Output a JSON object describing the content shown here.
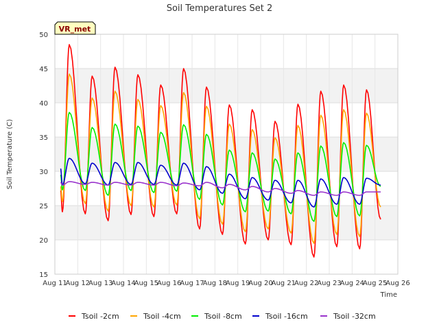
{
  "chart_data": {
    "type": "line",
    "title": "Soil Temperatures Set 2",
    "xlabel": "Time",
    "ylabel": "Soil Temperature (C)",
    "badge": "VR_met",
    "ylim": [
      15,
      50
    ],
    "yticks": [
      15,
      20,
      25,
      30,
      35,
      40,
      45,
      50
    ],
    "xlim": [
      11,
      26
    ],
    "xtick_labels": [
      "Aug 11",
      "Aug 12",
      "Aug 13",
      "Aug 14",
      "Aug 15",
      "Aug 16",
      "Aug 17",
      "Aug 18",
      "Aug 19",
      "Aug 20",
      "Aug 21",
      "Aug 22",
      "Aug 23",
      "Aug 24",
      "Aug 25",
      "Aug 26"
    ],
    "grid": true,
    "banded_background": true,
    "legend_position": "bottom",
    "days": [
      11,
      12,
      13,
      14,
      15,
      16,
      17,
      18,
      19,
      20,
      21,
      22,
      23,
      24,
      25
    ],
    "series": [
      {
        "name": "Tsoil -2cm",
        "color": "#ff0000",
        "start": 27.2,
        "end": 23.0,
        "mins": [
          24.1,
          23.8,
          22.8,
          23.7,
          23.4,
          23.8,
          21.6,
          20.8,
          19.4,
          20.0,
          19.3,
          17.5,
          19.0,
          18.7
        ],
        "maxs": [
          48.5,
          43.9,
          45.2,
          44.1,
          42.6,
          45.0,
          42.3,
          39.7,
          39.0,
          37.3,
          39.8,
          41.7,
          42.6,
          41.9
        ]
      },
      {
        "name": "Tsoil -4cm",
        "color": "#ffa500",
        "start": 27.8,
        "end": 24.8,
        "mins": [
          25.6,
          25.3,
          24.2,
          25.0,
          24.8,
          25.1,
          23.1,
          22.3,
          21.2,
          21.6,
          21.0,
          19.5,
          20.8,
          20.5
        ],
        "maxs": [
          44.2,
          40.7,
          41.7,
          40.5,
          39.6,
          41.5,
          39.5,
          36.9,
          36.1,
          34.9,
          36.7,
          38.2,
          39.0,
          38.5
        ]
      },
      {
        "name": "Tsoil -8cm",
        "color": "#00ee00",
        "start": 29.5,
        "end": 27.8,
        "mins": [
          27.3,
          27.2,
          26.5,
          27.2,
          26.9,
          27.1,
          25.9,
          25.1,
          24.1,
          24.2,
          23.8,
          22.7,
          23.4,
          23.5
        ],
        "maxs": [
          38.6,
          36.4,
          36.9,
          36.6,
          35.7,
          36.8,
          35.4,
          33.1,
          32.7,
          31.8,
          32.7,
          33.7,
          34.2,
          33.8
        ]
      },
      {
        "name": "Tsoil -16cm",
        "color": "#0000cc",
        "start": 30.4,
        "end": 28.0,
        "mins": [
          28.0,
          28.2,
          28.0,
          28.1,
          28.1,
          28.0,
          27.3,
          26.8,
          26.0,
          25.8,
          25.4,
          24.8,
          25.2,
          25.2
        ],
        "maxs": [
          31.9,
          31.2,
          31.3,
          31.3,
          30.9,
          31.2,
          30.7,
          29.6,
          29.1,
          28.7,
          28.7,
          28.9,
          29.1,
          29.0
        ]
      },
      {
        "name": "Tsoil -32cm",
        "color": "#9932cc",
        "start": 28.4,
        "end": 27.0,
        "mins": [
          28.0,
          28.1,
          28.0,
          28.0,
          28.0,
          27.9,
          27.9,
          27.6,
          27.3,
          27.0,
          26.8,
          26.5,
          26.5,
          26.5
        ],
        "maxs": [
          28.5,
          28.4,
          28.4,
          28.4,
          28.4,
          28.3,
          28.4,
          28.1,
          27.8,
          27.5,
          27.2,
          27.0,
          27.0,
          27.0
        ]
      }
    ]
  }
}
